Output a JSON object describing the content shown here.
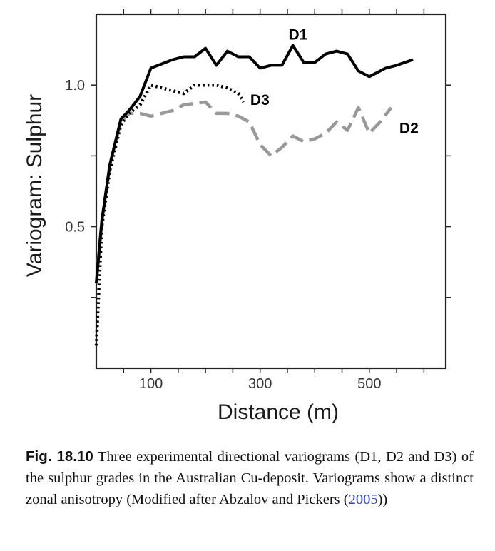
{
  "chart_data": {
    "type": "line",
    "xlabel": "Distance (m)",
    "ylabel": "Variogram: Sulphur",
    "xlim": [
      0,
      640
    ],
    "ylim": [
      0,
      1.25
    ],
    "xticks": [
      100,
      300,
      500
    ],
    "yticks": [
      0.5,
      1.0
    ],
    "ytick_labels": [
      "0.5",
      "1.0"
    ],
    "grid": false,
    "colors": {
      "D1": "#000000",
      "D2": "#999999",
      "D3": "#000000"
    },
    "series": [
      {
        "name": "D1",
        "style": "solid",
        "x": [
          0,
          10,
          25,
          45,
          60,
          80,
          100,
          140,
          160,
          180,
          200,
          220,
          240,
          260,
          280,
          300,
          320,
          340,
          360,
          380,
          400,
          420,
          440,
          460,
          480,
          500,
          510,
          530,
          550,
          580
        ],
        "y": [
          0.3,
          0.52,
          0.72,
          0.88,
          0.91,
          0.96,
          1.06,
          1.09,
          1.1,
          1.1,
          1.13,
          1.07,
          1.12,
          1.1,
          1.1,
          1.06,
          1.07,
          1.07,
          1.14,
          1.08,
          1.08,
          1.11,
          1.12,
          1.11,
          1.05,
          1.03,
          1.04,
          1.06,
          1.07,
          1.09
        ]
      },
      {
        "name": "D2",
        "style": "dashed",
        "x": [
          0,
          10,
          25,
          45,
          60,
          80,
          100,
          140,
          160,
          200,
          220,
          240,
          260,
          280,
          300,
          320,
          340,
          360,
          380,
          400,
          420,
          440,
          460,
          480,
          500,
          520,
          540
        ],
        "y": [
          0.3,
          0.52,
          0.72,
          0.87,
          0.9,
          0.9,
          0.89,
          0.91,
          0.93,
          0.94,
          0.9,
          0.9,
          0.89,
          0.87,
          0.79,
          0.75,
          0.78,
          0.82,
          0.8,
          0.81,
          0.83,
          0.87,
          0.84,
          0.92,
          0.83,
          0.87,
          0.92
        ]
      },
      {
        "name": "D3",
        "style": "dotted",
        "x": [
          0,
          10,
          25,
          45,
          60,
          80,
          100,
          120,
          140,
          160,
          180,
          200,
          220,
          240,
          260,
          270
        ],
        "y": [
          0.08,
          0.5,
          0.7,
          0.86,
          0.9,
          0.93,
          1.0,
          0.99,
          0.98,
          0.97,
          1.0,
          1.0,
          1.0,
          0.99,
          0.97,
          0.94
        ]
      }
    ],
    "annotations": [
      {
        "text": "D1",
        "x": 352,
        "y": 1.16
      },
      {
        "text": "D3",
        "x": 282,
        "y": 0.93
      },
      {
        "text": "D2",
        "x": 555,
        "y": 0.83
      }
    ]
  },
  "caption": {
    "label": "Fig. 18.10",
    "text_before": "Three experimental directional variograms (D1, D2 and D3) of the sulphur grades in the Australian Cu-deposit. Variograms show a distinct zonal anisotropy (Modified after Abzalov and Pickers (",
    "citation": "2005",
    "text_after": "))"
  }
}
